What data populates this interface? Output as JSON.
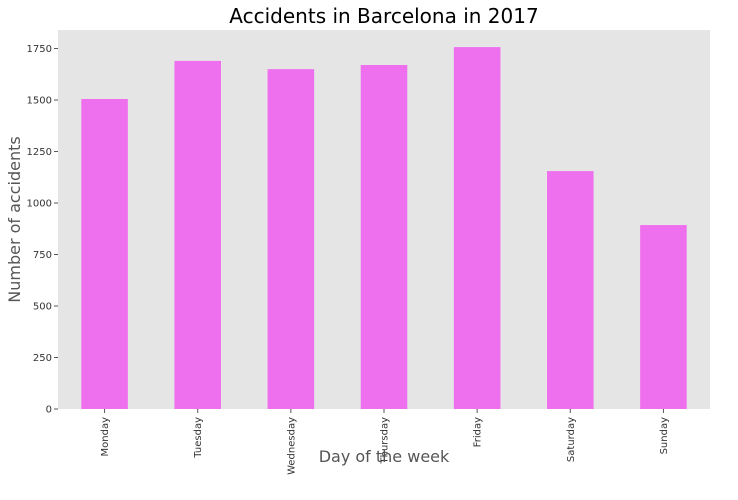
{
  "chart_data": {
    "type": "bar",
    "title": "Accidents in Barcelona in 2017",
    "xlabel": "Day of the week",
    "ylabel": "Number of accidents",
    "categories": [
      "Monday",
      "Tuesday",
      "Wednesday",
      "Thursday",
      "Friday",
      "Saturday",
      "Sunday"
    ],
    "values": [
      1505,
      1690,
      1650,
      1670,
      1757,
      1155,
      893
    ],
    "ylim": [
      0,
      1840
    ],
    "yticks": [
      0,
      250,
      500,
      750,
      1000,
      1250,
      1500,
      1750
    ],
    "grid": false,
    "legend": "none",
    "colors": {
      "bar": "#ee70ee",
      "plot_background": "#e5e5e5"
    }
  }
}
